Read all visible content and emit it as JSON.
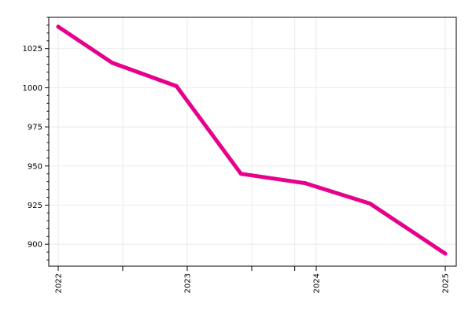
{
  "chart_data": {
    "type": "line",
    "title": "",
    "xlabel": "",
    "ylabel": "",
    "x": [
      "2022-01",
      "2022-06",
      "2022-12",
      "2023-06",
      "2023-12",
      "2024-06",
      "2025-01"
    ],
    "series": [
      {
        "values": [
          1039,
          1016,
          1001,
          945,
          939,
          926,
          894
        ],
        "color": "#e6008c"
      }
    ],
    "x_ticks": [
      "2022",
      "2023",
      "2024",
      "2025"
    ],
    "y_ticks": [
      "900",
      "925",
      "950",
      "975",
      "1000",
      "1025"
    ],
    "ylim": [
      886,
      1045
    ],
    "grid": true,
    "legend": "none"
  }
}
